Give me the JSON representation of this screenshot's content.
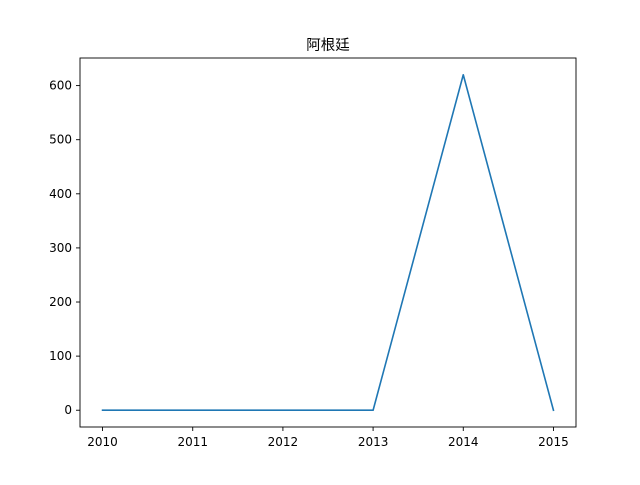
{
  "chart_data": {
    "type": "line",
    "title": "阿根廷",
    "xlabel": "",
    "ylabel": "",
    "x": [
      2010,
      2011,
      2012,
      2013,
      2014,
      2015
    ],
    "series": [
      {
        "values": [
          0,
          0,
          0,
          0,
          620,
          0
        ],
        "color": "#1f77b4"
      }
    ],
    "xlim": [
      2009.75,
      2015.25
    ],
    "ylim": [
      -31,
      651
    ],
    "xticks": [
      "2010",
      "2011",
      "2012",
      "2013",
      "2014",
      "2015"
    ],
    "yticks": [
      "0",
      "100",
      "200",
      "300",
      "400",
      "500",
      "600"
    ],
    "grid": false,
    "legend": "none"
  }
}
